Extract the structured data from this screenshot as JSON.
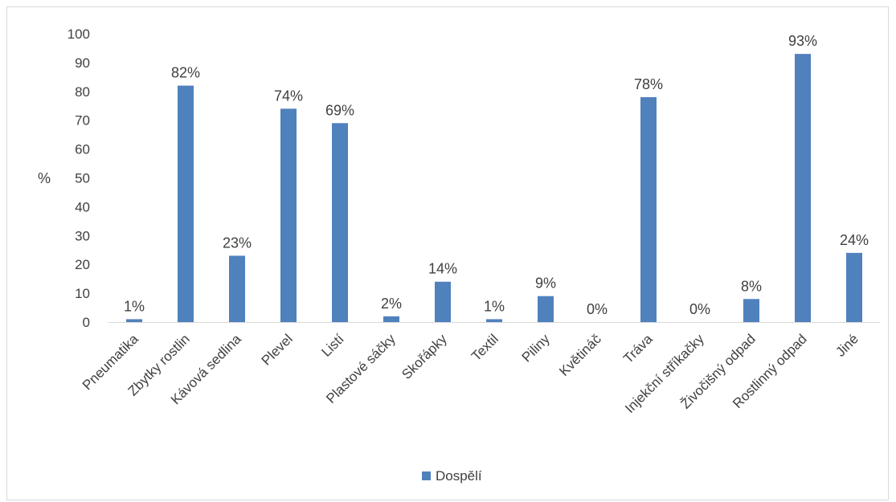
{
  "chart_data": {
    "type": "bar",
    "ylabel": "%",
    "ylim": [
      0,
      100
    ],
    "ytick_step": 10,
    "grid": false,
    "legend_position": "bottom",
    "bar_color": "#4f81bd",
    "series": [
      {
        "name": "Dospělí",
        "values": [
          1,
          82,
          23,
          74,
          69,
          2,
          14,
          1,
          9,
          0,
          78,
          0,
          8,
          93,
          24
        ],
        "labels": [
          "1%",
          "82%",
          "23%",
          "74%",
          "69%",
          "2%",
          "14%",
          "1%",
          "9%",
          "0%",
          "78%",
          "0%",
          "8%",
          "93%",
          "24%"
        ]
      }
    ],
    "categories": [
      "Pneumatika",
      "Zbytky rostlin",
      "Kávová sedlina",
      "Plevel",
      "Listí",
      "Plastové sáčky",
      "Skořápky",
      "Textil",
      "Piliny",
      "Květináč",
      "Tráva",
      "Injekční stříkačky",
      "Živočišný odpad",
      "Rostlinný odpad",
      "Jiné"
    ]
  }
}
